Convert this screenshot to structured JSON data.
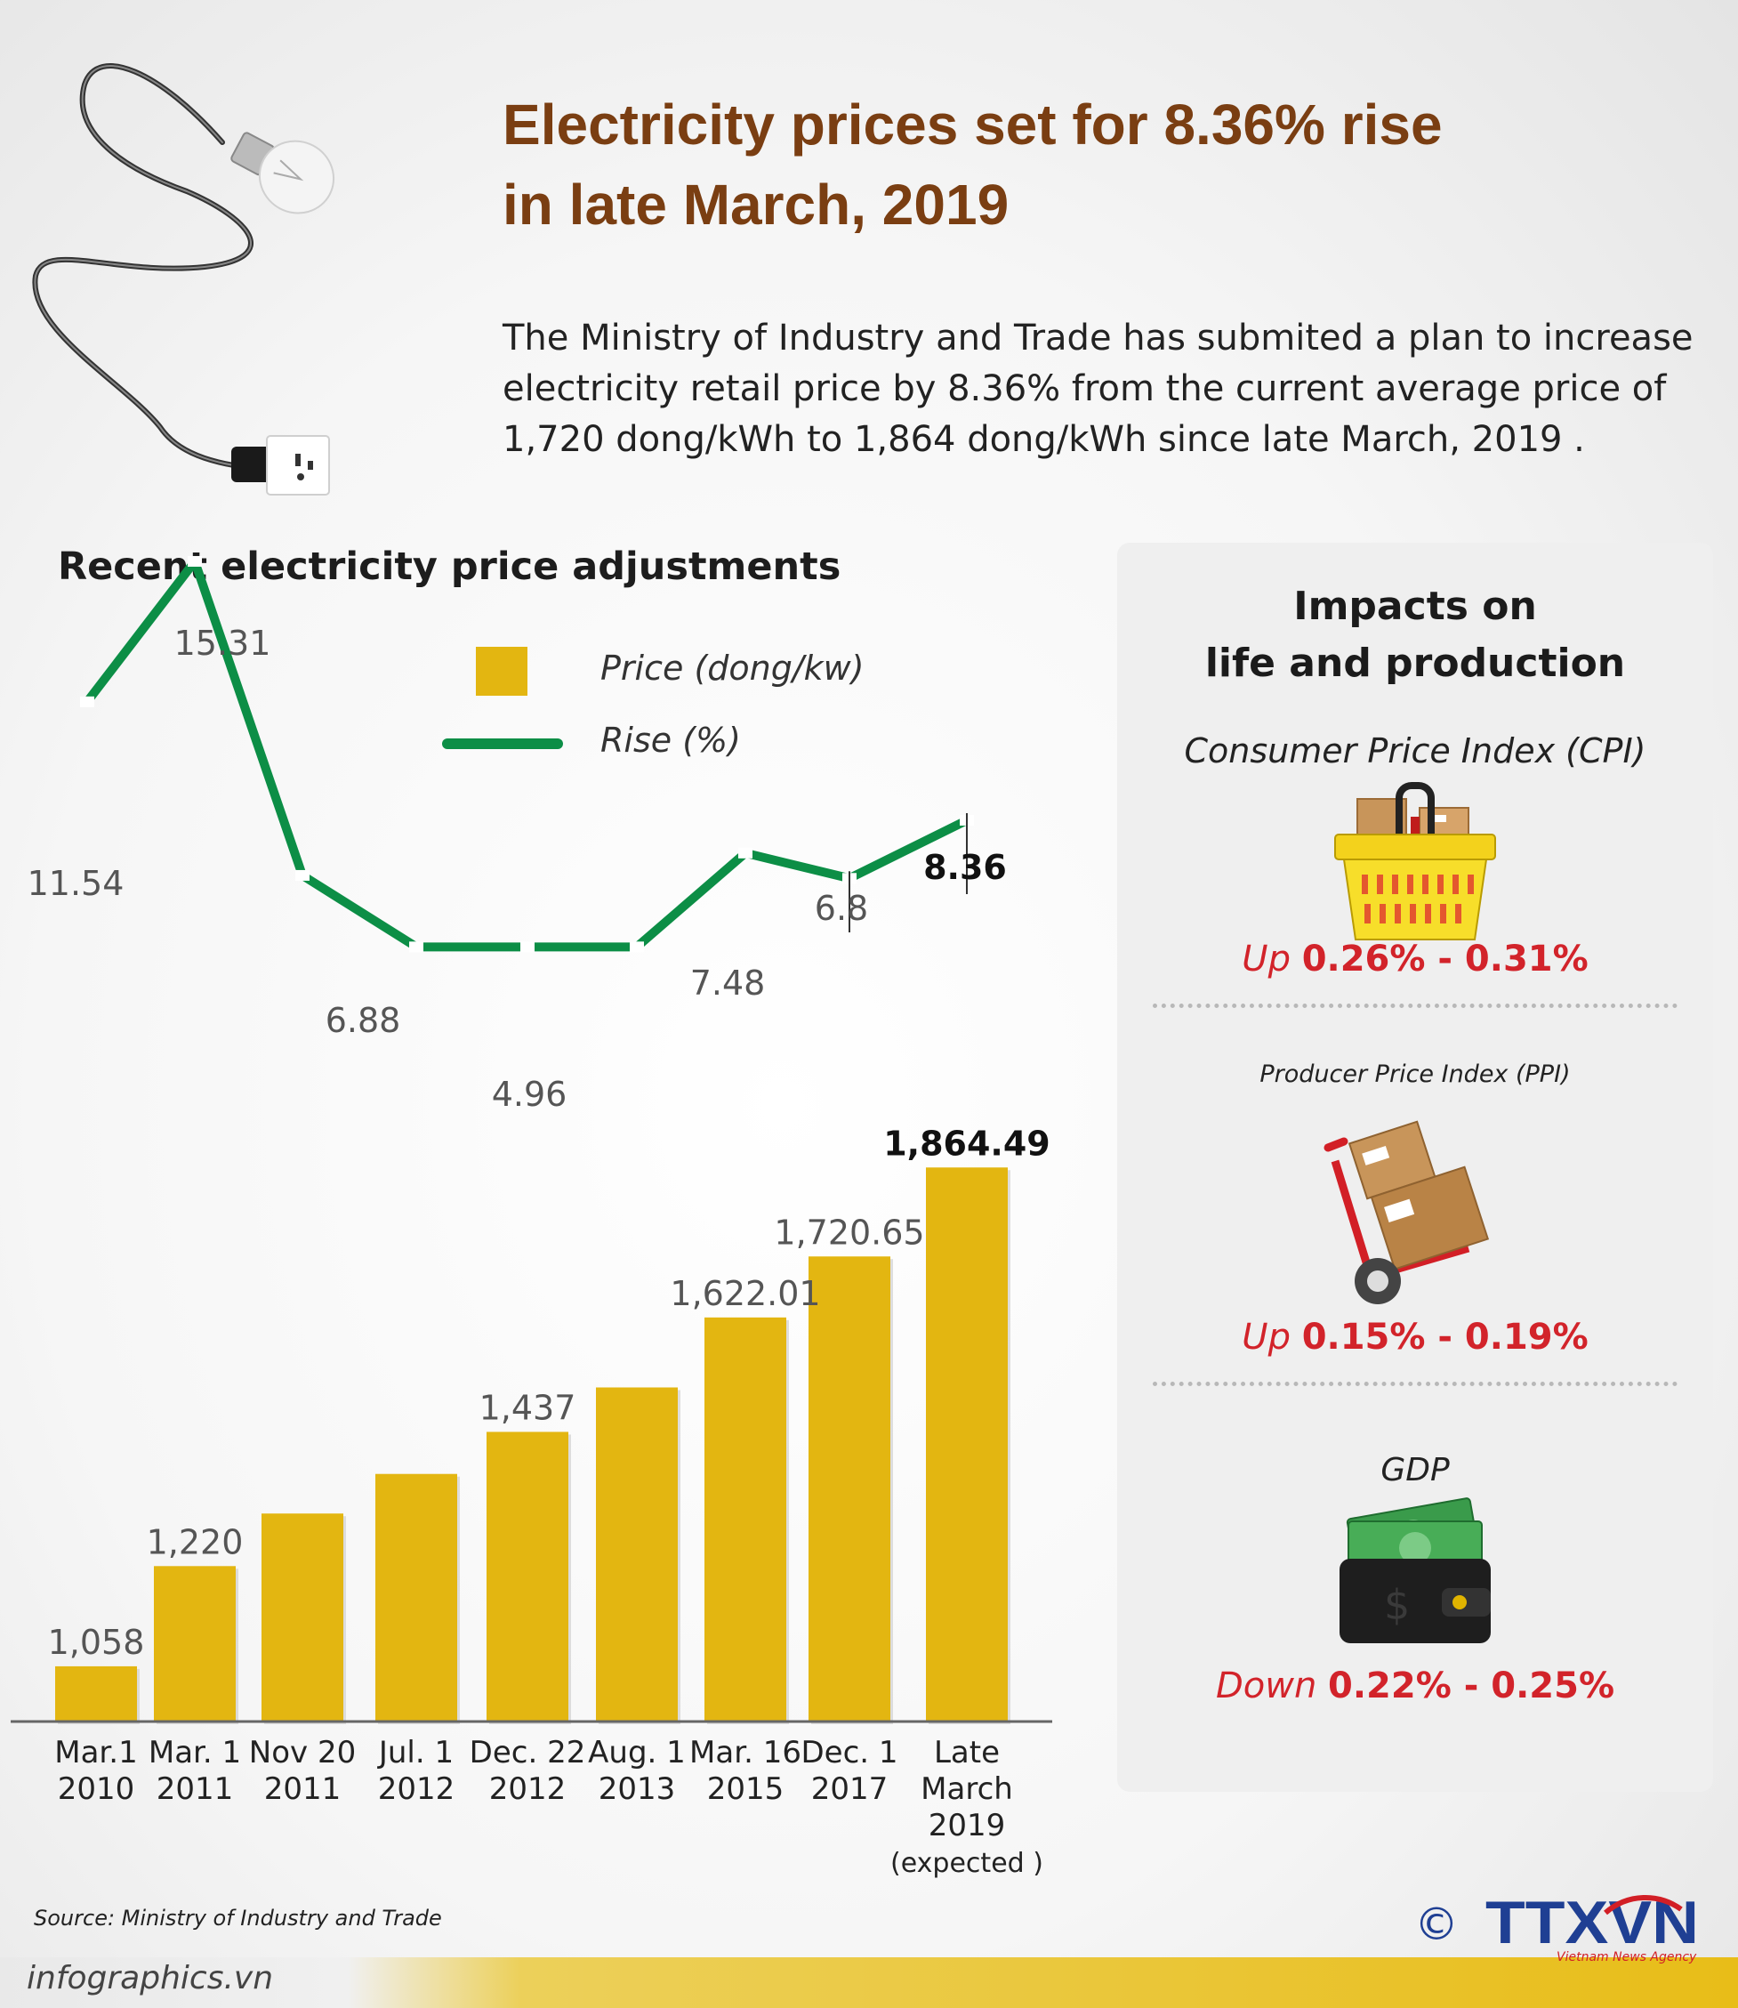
{
  "title": {
    "line1": "Electricity prices set for 8.36% rise",
    "line2": "in late March, 2019"
  },
  "intro": {
    "line1": "The Ministry of Industry and Trade has submited a plan to increase",
    "line2": "electricity retail price by 8.36% from the current average price of",
    "line3": "1,720 dong/kWh to 1,864 dong/kWh since late March, 2019 ."
  },
  "chart_data": {
    "type": "bar",
    "title": "Recent electricity price adjustments",
    "legend": {
      "placement": "top-center",
      "price_label": "Price (dong/kw)",
      "rise_label": "Rise (%)"
    },
    "colors": {
      "bar": "#e3b611",
      "line": "#0c8e46"
    },
    "categories": [
      [
        "Mar.1",
        "2010"
      ],
      [
        "Mar. 1",
        "2011"
      ],
      [
        "Nov 20",
        "2011"
      ],
      [
        "Jul. 1",
        "2012"
      ],
      [
        "Dec. 22",
        "2012"
      ],
      [
        "Aug. 1",
        "2013"
      ],
      [
        "Mar. 16",
        "2015"
      ],
      [
        "Dec. 1",
        "2017"
      ],
      [
        "Late",
        "March",
        "2019",
        "(expected )"
      ]
    ],
    "series": [
      {
        "name": "Price (dong/kw)",
        "values": [
          1058,
          1220,
          1305,
          1369,
          1437,
          1508.85,
          1622.01,
          1720.65,
          1864.49
        ],
        "labels": [
          "1,058",
          "1,220",
          "",
          "",
          "1,437",
          "",
          "1,622.01",
          "1,720.65",
          "1,864.49"
        ]
      },
      {
        "name": "Rise (%)",
        "values": [
          11.54,
          15.31,
          6.88,
          4.96,
          4.96,
          4.96,
          7.48,
          6.8,
          8.36
        ],
        "labels": [
          "11.54",
          "15.31",
          "6.88",
          "",
          "4.96",
          "",
          "7.48",
          "6.8",
          "8.36"
        ]
      }
    ],
    "grid": false
  },
  "impacts": {
    "title_line1": "Impacts on",
    "title_line2": "life and production",
    "items": [
      {
        "label": "Consumer Price Index  (CPI)",
        "icon": "shopping-basket-icon",
        "direction": "Up",
        "range": "0.26% - 0.31%"
      },
      {
        "label": "Producer Price Index (PPI)",
        "icon": "hand-truck-boxes-icon",
        "direction": "Up",
        "range": "0.15% - 0.19%"
      },
      {
        "label": "GDP",
        "icon": "wallet-money-icon",
        "direction": "Down",
        "range": "0.22% - 0.25%"
      }
    ]
  },
  "source": "Source: Ministry of Industry and Trade",
  "footer": {
    "site": "infographics.vn",
    "copyright": "©",
    "logo": "TTXVN",
    "agency": "Vietnam News Agency"
  },
  "decoration": {
    "icon": "light-bulb-with-cord-icon"
  }
}
